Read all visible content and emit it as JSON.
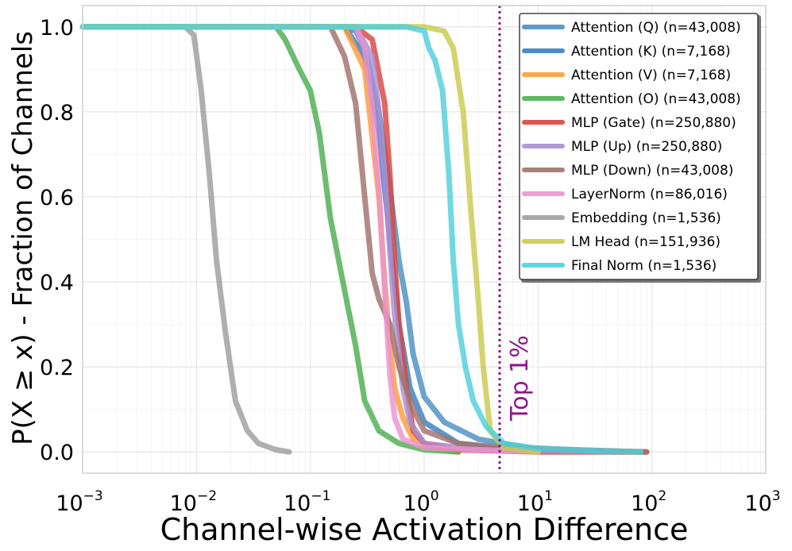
{
  "chart_data": {
    "type": "line",
    "xlabel": "Channel-wise Activation Difference",
    "ylabel": "P(X ≥ x) - Fraction of Channels",
    "xscale": "log",
    "xlim": [
      0.001,
      1000
    ],
    "ylim": [
      -0.05,
      1.05
    ],
    "x_ticks": [
      {
        "base": "10",
        "exp": "−3"
      },
      {
        "base": "10",
        "exp": "−2"
      },
      {
        "base": "10",
        "exp": "−1"
      },
      {
        "base": "10",
        "exp": "0"
      },
      {
        "base": "10",
        "exp": "1"
      },
      {
        "base": "10",
        "exp": "2"
      },
      {
        "base": "10",
        "exp": "3"
      }
    ],
    "y_ticks": [
      "0.0",
      "0.2",
      "0.4",
      "0.6",
      "0.8",
      "1.0"
    ],
    "grid": true,
    "legend_position": "top-right",
    "annotation": {
      "text": "Top 1%",
      "x": 4.6,
      "color": "#8b1a8b"
    },
    "series": [
      {
        "name": "Attention (Q) (n=43,008)",
        "color": "#4a90c4",
        "points": [
          [
            0.001,
            1
          ],
          [
            0.2,
            1
          ],
          [
            0.25,
            0.99
          ],
          [
            0.3,
            0.95
          ],
          [
            0.4,
            0.8
          ],
          [
            0.5,
            0.62
          ],
          [
            0.6,
            0.45
          ],
          [
            0.7,
            0.35
          ],
          [
            0.8,
            0.23
          ],
          [
            1.0,
            0.13
          ],
          [
            1.5,
            0.07
          ],
          [
            3,
            0.03
          ],
          [
            8,
            0.01
          ],
          [
            30,
            0.003
          ],
          [
            80,
            0
          ]
        ]
      },
      {
        "name": "Attention (K) (n=7,168)",
        "color": "#3a7fbf",
        "points": [
          [
            0.001,
            1
          ],
          [
            0.2,
            1
          ],
          [
            0.3,
            0.93
          ],
          [
            0.4,
            0.75
          ],
          [
            0.5,
            0.5
          ],
          [
            0.6,
            0.3
          ],
          [
            0.75,
            0.15
          ],
          [
            1.0,
            0.07
          ],
          [
            2,
            0.02
          ],
          [
            5,
            0.005
          ],
          [
            10,
            0
          ]
        ]
      },
      {
        "name": "Attention (V) (n=7,168)",
        "color": "#ff9a3c",
        "points": [
          [
            0.001,
            1
          ],
          [
            0.2,
            1
          ],
          [
            0.3,
            0.9
          ],
          [
            0.4,
            0.6
          ],
          [
            0.45,
            0.4
          ],
          [
            0.5,
            0.25
          ],
          [
            0.55,
            0.15
          ],
          [
            0.65,
            0.08
          ],
          [
            0.8,
            0.03
          ],
          [
            1.2,
            0.01
          ],
          [
            2,
            0
          ]
        ]
      },
      {
        "name": "Attention (O) (n=43,008)",
        "color": "#4caf50",
        "points": [
          [
            0.001,
            1
          ],
          [
            0.05,
            1
          ],
          [
            0.06,
            0.97
          ],
          [
            0.08,
            0.9
          ],
          [
            0.1,
            0.85
          ],
          [
            0.12,
            0.75
          ],
          [
            0.15,
            0.55
          ],
          [
            0.2,
            0.38
          ],
          [
            0.25,
            0.25
          ],
          [
            0.3,
            0.12
          ],
          [
            0.4,
            0.05
          ],
          [
            0.6,
            0.02
          ],
          [
            1,
            0.005
          ],
          [
            2,
            0
          ]
        ]
      },
      {
        "name": "MLP (Gate) (n=250,880)",
        "color": "#d9453f",
        "points": [
          [
            0.001,
            1
          ],
          [
            0.25,
            1
          ],
          [
            0.35,
            0.97
          ],
          [
            0.45,
            0.82
          ],
          [
            0.5,
            0.65
          ],
          [
            0.55,
            0.45
          ],
          [
            0.6,
            0.3
          ],
          [
            0.7,
            0.15
          ],
          [
            0.8,
            0.05
          ],
          [
            1.0,
            0.02
          ],
          [
            2,
            0.005
          ],
          [
            10,
            0
          ],
          [
            90,
            0
          ]
        ]
      },
      {
        "name": "MLP (Up) (n=250,880)",
        "color": "#a98fd1",
        "points": [
          [
            0.001,
            1
          ],
          [
            0.25,
            1
          ],
          [
            0.35,
            0.93
          ],
          [
            0.4,
            0.8
          ],
          [
            0.45,
            0.65
          ],
          [
            0.5,
            0.47
          ],
          [
            0.55,
            0.32
          ],
          [
            0.65,
            0.15
          ],
          [
            0.75,
            0.07
          ],
          [
            1.0,
            0.02
          ],
          [
            3,
            0.005
          ],
          [
            50,
            0
          ]
        ]
      },
      {
        "name": "MLP (Down) (n=43,008)",
        "color": "#a0736b",
        "points": [
          [
            0.001,
            1
          ],
          [
            0.15,
            1
          ],
          [
            0.2,
            0.93
          ],
          [
            0.25,
            0.82
          ],
          [
            0.3,
            0.6
          ],
          [
            0.35,
            0.42
          ],
          [
            0.4,
            0.36
          ],
          [
            0.5,
            0.3
          ],
          [
            0.6,
            0.2
          ],
          [
            0.8,
            0.1
          ],
          [
            1.0,
            0.05
          ],
          [
            2,
            0.02
          ],
          [
            5,
            0.01
          ],
          [
            20,
            0.005
          ],
          [
            90,
            0
          ]
        ]
      },
      {
        "name": "LayerNorm (n=86,016)",
        "color": "#ec94cf",
        "points": [
          [
            0.001,
            1
          ],
          [
            0.25,
            1
          ],
          [
            0.3,
            0.95
          ],
          [
            0.35,
            0.82
          ],
          [
            0.4,
            0.62
          ],
          [
            0.45,
            0.38
          ],
          [
            0.5,
            0.18
          ],
          [
            0.55,
            0.08
          ],
          [
            0.65,
            0.03
          ],
          [
            1,
            0.01
          ],
          [
            3,
            0.005
          ],
          [
            10,
            0
          ]
        ]
      },
      {
        "name": "Embedding (n=1,536)",
        "color": "#9e9e9e",
        "points": [
          [
            0.001,
            1
          ],
          [
            0.008,
            1
          ],
          [
            0.0095,
            0.98
          ],
          [
            0.011,
            0.85
          ],
          [
            0.013,
            0.65
          ],
          [
            0.015,
            0.45
          ],
          [
            0.018,
            0.28
          ],
          [
            0.022,
            0.12
          ],
          [
            0.028,
            0.05
          ],
          [
            0.035,
            0.02
          ],
          [
            0.05,
            0.005
          ],
          [
            0.065,
            0
          ]
        ]
      },
      {
        "name": "LM Head (n=151,936)",
        "color": "#c9ca4e",
        "points": [
          [
            0.001,
            1
          ],
          [
            1.0,
            1
          ],
          [
            1.5,
            0.99
          ],
          [
            1.8,
            0.95
          ],
          [
            2.2,
            0.8
          ],
          [
            2.6,
            0.55
          ],
          [
            3.0,
            0.35
          ],
          [
            3.3,
            0.2
          ],
          [
            3.8,
            0.05
          ],
          [
            5,
            0.01
          ],
          [
            10,
            0
          ]
        ]
      },
      {
        "name": "Final Norm (n=1,536)",
        "color": "#4fd0dc",
        "points": [
          [
            0.001,
            1
          ],
          [
            0.7,
            1
          ],
          [
            1.0,
            0.99
          ],
          [
            1.1,
            0.95
          ],
          [
            1.25,
            0.92
          ],
          [
            1.45,
            0.85
          ],
          [
            1.65,
            0.65
          ],
          [
            1.8,
            0.45
          ],
          [
            2.0,
            0.3
          ],
          [
            2.3,
            0.2
          ],
          [
            2.7,
            0.12
          ],
          [
            3.5,
            0.06
          ],
          [
            5,
            0.02
          ],
          [
            10,
            0.008
          ],
          [
            30,
            0.003
          ],
          [
            80,
            0
          ]
        ]
      }
    ]
  }
}
